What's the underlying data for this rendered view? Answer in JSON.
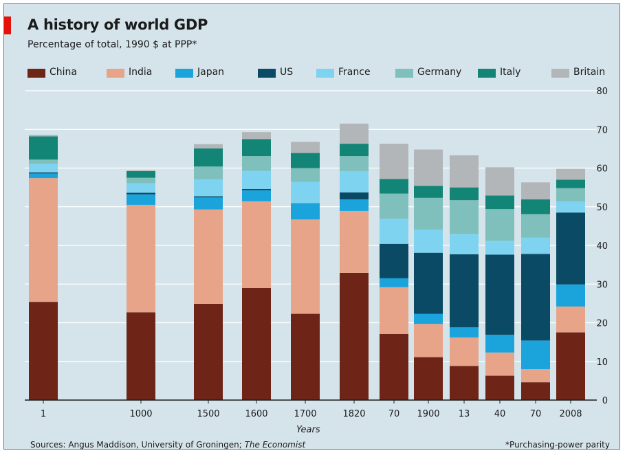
{
  "chart_data": {
    "type": "bar",
    "stacked": true,
    "title": "A history of world GDP",
    "subtitle": "Percentage of total, 1990 $  at PPP*",
    "xlabel": "Years",
    "ylabel": "",
    "ylim": [
      0,
      80
    ],
    "yticks": [
      0,
      10,
      20,
      30,
      40,
      50,
      60,
      70,
      80
    ],
    "grid": true,
    "legend": "top",
    "categories": [
      "1",
      "1000",
      "1500",
      "1600",
      "1700",
      "1820",
      "70",
      "1900",
      "13",
      "40",
      "70",
      "2008"
    ],
    "category_years": [
      1,
      1000,
      1500,
      1600,
      1700,
      1820,
      1870,
      1900,
      1913,
      1940,
      1970,
      2008
    ],
    "series": [
      {
        "name": "China",
        "color": "#6e2417",
        "values": [
          25.4,
          22.7,
          24.9,
          29.0,
          22.3,
          32.9,
          17.1,
          11.1,
          8.8,
          6.3,
          4.6,
          17.5
        ]
      },
      {
        "name": "India",
        "color": "#e8a488",
        "values": [
          32.0,
          27.8,
          24.4,
          22.4,
          24.4,
          16.0,
          12.1,
          8.6,
          7.4,
          6.0,
          3.4,
          6.7
        ]
      },
      {
        "name": "Japan",
        "color": "#1ba4dc",
        "values": [
          1.2,
          2.7,
          3.1,
          2.9,
          4.1,
          3.0,
          2.3,
          2.6,
          2.6,
          4.6,
          7.4,
          5.7
        ]
      },
      {
        "name": "US",
        "color": "#0b4a64",
        "values": [
          0.3,
          0.4,
          0.3,
          0.3,
          0.1,
          1.8,
          8.9,
          15.8,
          18.9,
          20.7,
          22.4,
          18.6
        ]
      },
      {
        "name": "France",
        "color": "#7ed3f1",
        "values": [
          2.2,
          2.5,
          4.4,
          4.7,
          5.5,
          5.5,
          6.5,
          6.0,
          5.3,
          3.6,
          4.2,
          2.9
        ]
      },
      {
        "name": "Germany",
        "color": "#7fbfbc",
        "values": [
          1.1,
          1.4,
          3.3,
          3.8,
          3.6,
          3.9,
          6.5,
          8.2,
          8.7,
          8.2,
          6.1,
          3.4
        ]
      },
      {
        "name": "Italy",
        "color": "#138576",
        "values": [
          6.0,
          1.7,
          4.7,
          4.4,
          3.9,
          3.2,
          3.8,
          3.1,
          3.3,
          3.5,
          3.8,
          2.2
        ]
      },
      {
        "name": "Britain",
        "color": "#b3b6b9",
        "values": [
          0.4,
          0.2,
          1.1,
          1.8,
          2.9,
          5.2,
          9.1,
          9.4,
          8.3,
          7.3,
          4.4,
          2.8
        ]
      }
    ]
  },
  "sources": {
    "prefix": "Sources: Angus Maddison, University of Groningen; ",
    "italic": "The Economist"
  },
  "footnote": "*Purchasing-power parity"
}
